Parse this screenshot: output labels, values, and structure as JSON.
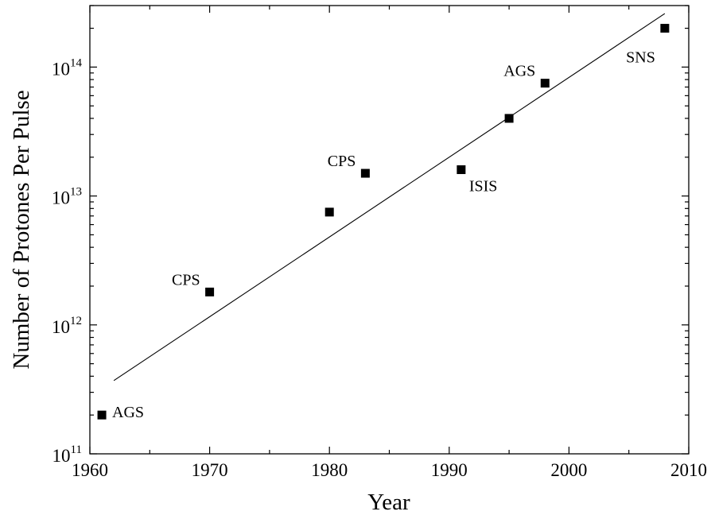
{
  "chart_data": {
    "type": "scatter",
    "title": "",
    "xlabel": "Year",
    "ylabel": "Number of Protones Per Pulse",
    "xlim": [
      1960,
      2010
    ],
    "ylim": [
      100000000000.0,
      300000000000000.0
    ],
    "yscale": "log",
    "grid": false,
    "x_ticks": [
      "1960",
      "1970",
      "1980",
      "1990",
      "2000",
      "2010"
    ],
    "y_ticks": [
      {
        "base": "10",
        "exp": "11",
        "value": 100000000000.0
      },
      {
        "base": "10",
        "exp": "12",
        "value": 1000000000000.0
      },
      {
        "base": "10",
        "exp": "13",
        "value": 10000000000000.0
      },
      {
        "base": "10",
        "exp": "14",
        "value": 100000000000000.0
      }
    ],
    "points": [
      {
        "x": 1961,
        "y": 200000000000.0,
        "label": "AGS",
        "label_pos": "right"
      },
      {
        "x": 1970,
        "y": 1800000000000.0,
        "label": "CPS",
        "label_pos": "upper-left"
      },
      {
        "x": 1980,
        "y": 7500000000000.0,
        "label": "",
        "label_pos": ""
      },
      {
        "x": 1983,
        "y": 15000000000000.0,
        "label": "CPS",
        "label_pos": "upper-left"
      },
      {
        "x": 1991,
        "y": 16000000000000.0,
        "label": "ISIS",
        "label_pos": "lower-right"
      },
      {
        "x": 1995,
        "y": 40000000000000.0,
        "label": "",
        "label_pos": ""
      },
      {
        "x": 1998,
        "y": 75000000000000.0,
        "label": "AGS",
        "label_pos": "upper-left"
      },
      {
        "x": 2008,
        "y": 200000000000000.0,
        "label": "SNS",
        "label_pos": "lower-left"
      }
    ],
    "fit_line": {
      "x": [
        1962,
        2008
      ],
      "y": [
        370000000000.0,
        260000000000000.0
      ]
    },
    "colors": {
      "marker": "#000000",
      "line": "#000000"
    }
  }
}
